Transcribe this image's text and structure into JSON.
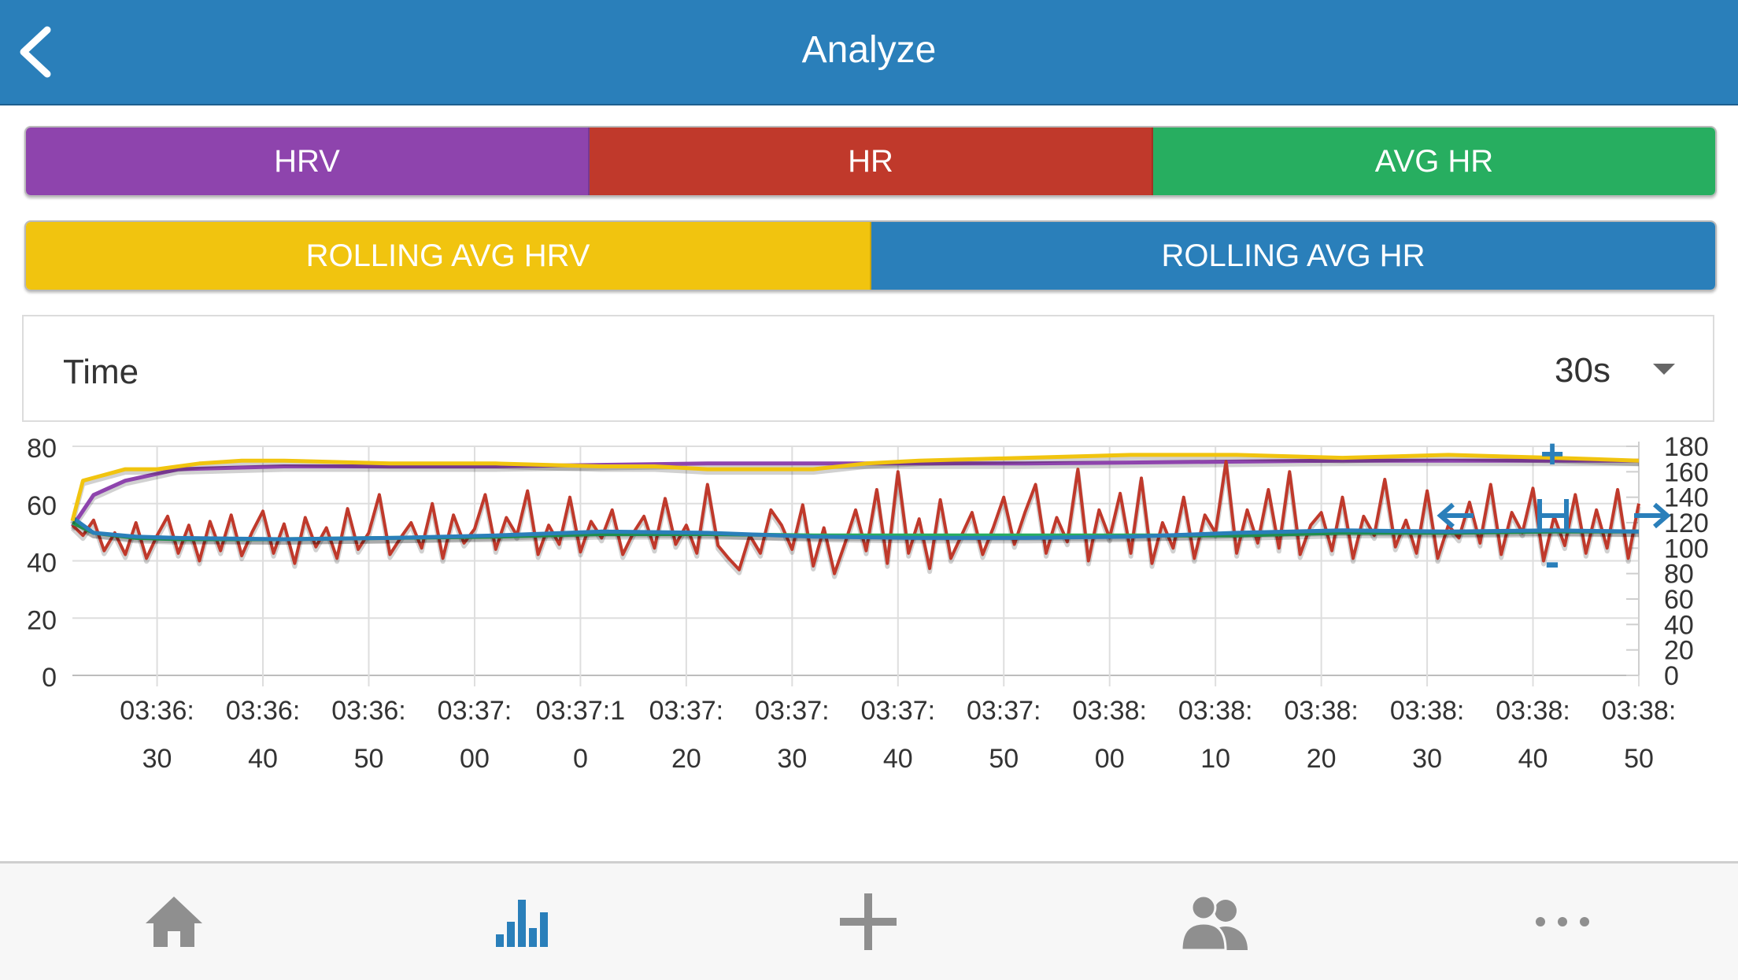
{
  "header": {
    "title": "Analyze",
    "back_icon": "chevron-left-icon"
  },
  "series_buttons": {
    "row1": [
      {
        "label": "HRV",
        "color": "#8e44ad"
      },
      {
        "label": "HR",
        "color": "#c0392b"
      },
      {
        "label": "AVG HR",
        "color": "#27ae60"
      }
    ],
    "row2": [
      {
        "label": "ROLLING AVG HRV",
        "color": "#f1c40f"
      },
      {
        "label": "ROLLING AVG HR",
        "color": "#2a7fba"
      }
    ]
  },
  "time_selector": {
    "label": "Time",
    "value": "30s",
    "icon": "chevron-down-icon"
  },
  "chart_data": {
    "type": "line",
    "x_ticks": [
      [
        "03:36:",
        "30"
      ],
      [
        "03:36:",
        "40"
      ],
      [
        "03:36:",
        "50"
      ],
      [
        "03:37:",
        "00"
      ],
      [
        "03:37:1",
        "0"
      ],
      [
        "03:37:",
        "20"
      ],
      [
        "03:37:",
        "30"
      ],
      [
        "03:37:",
        "40"
      ],
      [
        "03:37:",
        "50"
      ],
      [
        "03:38:",
        "00"
      ],
      [
        "03:38:",
        "10"
      ],
      [
        "03:38:",
        "20"
      ],
      [
        "03:38:",
        "30"
      ],
      [
        "03:38:",
        "40"
      ],
      [
        "03:38:",
        "50"
      ]
    ],
    "x_range": [
      "03:36:22",
      "03:38:50"
    ],
    "y_left": {
      "ticks": [
        "80",
        "60",
        "40",
        "20",
        "0"
      ],
      "range": [
        0,
        80
      ]
    },
    "y_right": {
      "ticks": [
        "180",
        "160",
        "140",
        "120",
        "100",
        "80",
        "60",
        "40",
        "20",
        "0"
      ],
      "range": [
        0,
        180
      ]
    },
    "grid": true,
    "series": [
      {
        "name": "HRV",
        "color": "#8e44ad",
        "axis": "left",
        "x_seconds": [
          0,
          2,
          5,
          10,
          20,
          40,
          60,
          90,
          120,
          148
        ],
        "values": [
          52,
          63,
          68,
          72,
          73,
          73,
          74,
          74,
          75,
          75
        ]
      },
      {
        "name": "ROLLING AVG HRV",
        "color": "#f1c40f",
        "axis": "left",
        "x_seconds": [
          0,
          1,
          3,
          5,
          8,
          12,
          16,
          20,
          30,
          40,
          50,
          55,
          60,
          65,
          70,
          75,
          80,
          90,
          100,
          110,
          120,
          130,
          140,
          148
        ],
        "values": [
          54,
          68,
          70,
          72,
          72,
          74,
          75,
          75,
          74,
          74,
          73,
          73,
          72,
          72,
          72,
          74,
          75,
          76,
          77,
          77,
          76,
          77,
          76,
          75
        ]
      },
      {
        "name": "HR",
        "color": "#c0392b",
        "axis": "right",
        "x_seconds": [
          0,
          1,
          2,
          3,
          4,
          5,
          6,
          7,
          8,
          9,
          10,
          11,
          12,
          13,
          14,
          15,
          16,
          17,
          18,
          19,
          20,
          21,
          22,
          23,
          24,
          25,
          26,
          27,
          28,
          29,
          30,
          31,
          32,
          33,
          34,
          35,
          36,
          37,
          38,
          39,
          40,
          41,
          42,
          43,
          44,
          45,
          46,
          47,
          48,
          49,
          50,
          51,
          52,
          53,
          54,
          55,
          56,
          57,
          58,
          59,
          60,
          61,
          62,
          63,
          64,
          65,
          66,
          67,
          68,
          69,
          70,
          71,
          72,
          73,
          74,
          75,
          76,
          77,
          78,
          79,
          80,
          81,
          82,
          83,
          84,
          85,
          86,
          87,
          88,
          89,
          90,
          91,
          92,
          93,
          94,
          95,
          96,
          97,
          98,
          99,
          100,
          101,
          102,
          103,
          104,
          105,
          106,
          107,
          108,
          109,
          110,
          111,
          112,
          113,
          114,
          115,
          116,
          117,
          118,
          119,
          120,
          121,
          122,
          123,
          124,
          125,
          126,
          127,
          128,
          129,
          130,
          131,
          132,
          133,
          134,
          135,
          136,
          137,
          138,
          139,
          140,
          141,
          142,
          143,
          144,
          145,
          146,
          147,
          148
        ],
        "values": [
          118,
          110,
          122,
          98,
          112,
          95,
          120,
          92,
          110,
          125,
          96,
          118,
          90,
          121,
          98,
          126,
          94,
          113,
          129,
          96,
          119,
          88,
          124,
          101,
          116,
          92,
          131,
          99,
          112,
          142,
          95,
          108,
          120,
          100,
          135,
          92,
          126,
          104,
          115,
          142,
          99,
          124,
          110,
          145,
          95,
          118,
          103,
          140,
          97,
          121,
          108,
          130,
          95,
          112,
          125,
          100,
          139,
          103,
          118,
          96,
          150,
          102,
          92,
          83,
          110,
          96,
          130,
          118,
          99,
          134,
          86,
          116,
          80,
          104,
          130,
          98,
          146,
          88,
          160,
          96,
          123,
          84,
          138,
          92,
          110,
          128,
          95,
          116,
          140,
          103,
          128,
          150,
          96,
          124,
          105,
          162,
          90,
          130,
          108,
          143,
          96,
          155,
          88,
          120,
          100,
          140,
          92,
          126,
          112,
          168,
          96,
          130,
          104,
          146,
          100,
          160,
          95,
          118,
          128,
          98,
          140,
          92,
          125,
          110,
          154,
          101,
          122,
          96,
          145,
          92,
          118,
          108,
          136,
          104,
          150,
          95,
          128,
          112,
          147,
          90,
          125,
          102,
          142,
          96,
          130,
          100,
          146,
          92,
          135
        ]
      },
      {
        "name": "AVG HR",
        "color": "#27ae60",
        "axis": "right",
        "x_seconds": [
          0,
          2,
          6,
          10,
          20,
          30,
          40,
          50,
          60,
          70,
          80,
          90,
          100,
          110,
          120,
          130,
          140,
          148
        ],
        "values": [
          120,
          112,
          108,
          107,
          107,
          108,
          109,
          111,
          111,
          110,
          110,
          110,
          110,
          110,
          112,
          112,
          113,
          113
        ]
      },
      {
        "name": "ROLLING AVG HR",
        "color": "#2a7fba",
        "axis": "right",
        "x_seconds": [
          0,
          2,
          6,
          10,
          20,
          30,
          40,
          50,
          60,
          70,
          80,
          90,
          100,
          110,
          120,
          130,
          140,
          148
        ],
        "values": [
          124,
          112,
          109,
          108,
          107,
          108,
          110,
          113,
          112,
          109,
          108,
          108,
          109,
          112,
          114,
          113,
          114,
          113
        ]
      }
    ],
    "zoom_controls": {
      "zoom_in": "+",
      "zoom_out": "-",
      "pan_left_icon": "arrow-left-icon",
      "pan_right_icon": "arrow-right-icon",
      "reset_icon": "zoom-reset-icon"
    }
  },
  "tabbar": [
    {
      "name": "home",
      "icon": "home-icon"
    },
    {
      "name": "analyze",
      "icon": "bar-chart-icon",
      "active": true
    },
    {
      "name": "add",
      "icon": "plus-icon"
    },
    {
      "name": "users",
      "icon": "users-icon"
    },
    {
      "name": "more",
      "icon": "more-icon"
    }
  ],
  "colors": {
    "accent": "#2a7fba",
    "inactive_icon": "#8f8f8f"
  }
}
